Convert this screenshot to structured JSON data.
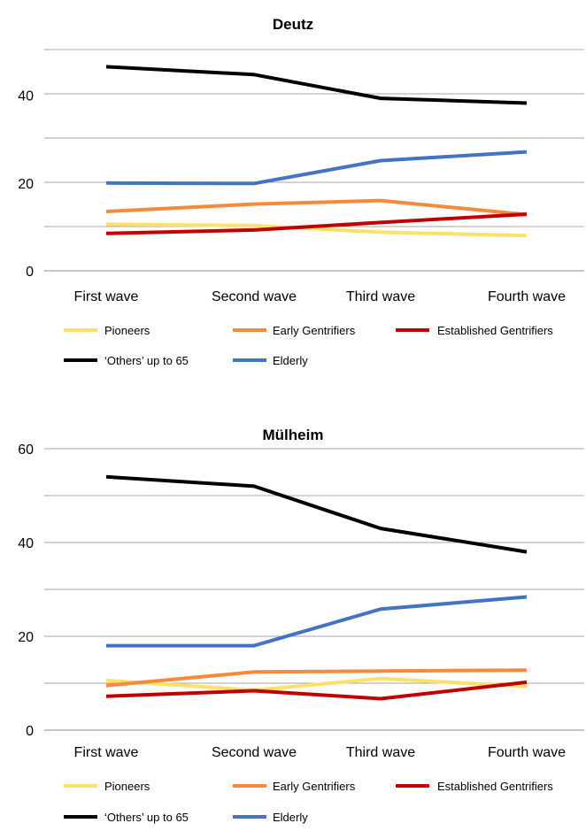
{
  "chart_data": [
    {
      "type": "line",
      "title": "Deutz",
      "categories": [
        "First wave",
        "Second wave",
        "Third wave",
        "Fourth wave"
      ],
      "yticks": [
        "0",
        "20",
        "40"
      ],
      "ylim": [
        0,
        50
      ],
      "grid": true,
      "legend_position": "bottom",
      "series": [
        {
          "name": "Pioneers",
          "color": "#FBE06A",
          "values": [
            10.6,
            10.3,
            8.8,
            8.0
          ]
        },
        {
          "name": "Early Gentrifiers",
          "color": "#F7893B",
          "values": [
            13.5,
            15.2,
            16.0,
            12.8
          ]
        },
        {
          "name": "Established Gentrifiers",
          "color": "#C00000",
          "values": [
            8.5,
            9.3,
            11.0,
            12.9
          ]
        },
        {
          "name": "‘Others’ up to 65",
          "color": "#000000",
          "values": [
            46.5,
            44.7,
            39.3,
            38.2
          ]
        },
        {
          "name": "Elderly",
          "color": "#4472C4",
          "values": [
            20.0,
            19.9,
            25.1,
            27.1
          ]
        }
      ]
    },
    {
      "type": "line",
      "title": "Mülheim",
      "categories": [
        "First wave",
        "Second wave",
        "Third wave",
        "Fourth wave"
      ],
      "yticks": [
        "0",
        "20",
        "40",
        "60"
      ],
      "ylim": [
        0,
        60
      ],
      "grid": true,
      "legend_position": "bottom",
      "series": [
        {
          "name": "Pioneers",
          "color": "#FBE06A",
          "values": [
            10.6,
            8.5,
            11.0,
            9.3
          ]
        },
        {
          "name": "Early Gentrifiers",
          "color": "#F7893B",
          "values": [
            9.5,
            12.4,
            12.6,
            12.8
          ]
        },
        {
          "name": "Established Gentrifiers",
          "color": "#C00000",
          "values": [
            7.2,
            8.4,
            6.7,
            10.2
          ]
        },
        {
          "name": "‘Others’ up to 65",
          "color": "#000000",
          "values": [
            54.0,
            52.0,
            43.0,
            38.0
          ]
        },
        {
          "name": "Elderly",
          "color": "#4472C4",
          "values": [
            18.0,
            18.0,
            25.8,
            28.4
          ]
        }
      ]
    }
  ]
}
